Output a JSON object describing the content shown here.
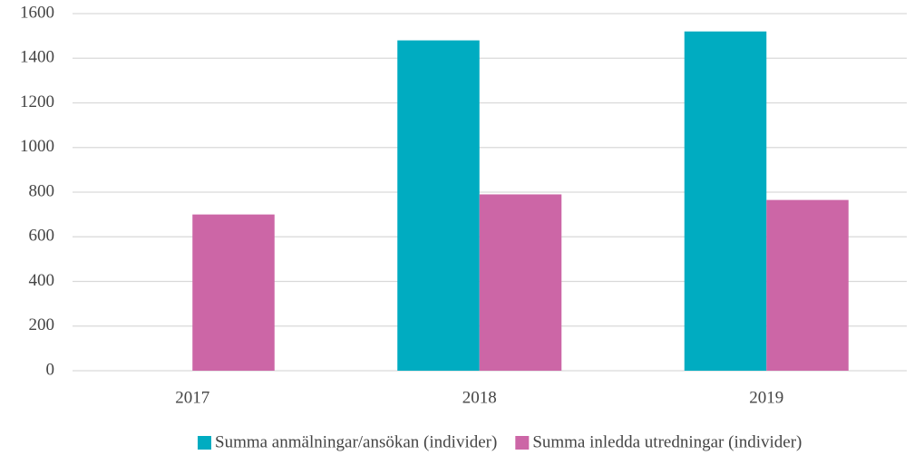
{
  "chart_data": {
    "type": "bar",
    "categories": [
      "2017",
      "2018",
      "2019"
    ],
    "series": [
      {
        "name": "Summa anmälningar/ansökan (individer)",
        "color": "#00acc1",
        "values": [
          null,
          1480,
          1520
        ]
      },
      {
        "name": "Summa inledda utredningar (individer)",
        "color": "#cc66a6",
        "values": [
          700,
          790,
          765
        ]
      }
    ],
    "ylim": [
      0,
      1600
    ],
    "yticks": [
      0,
      200,
      400,
      600,
      800,
      1000,
      1200,
      1400,
      1600
    ],
    "grid": true,
    "legend": "bottom"
  }
}
